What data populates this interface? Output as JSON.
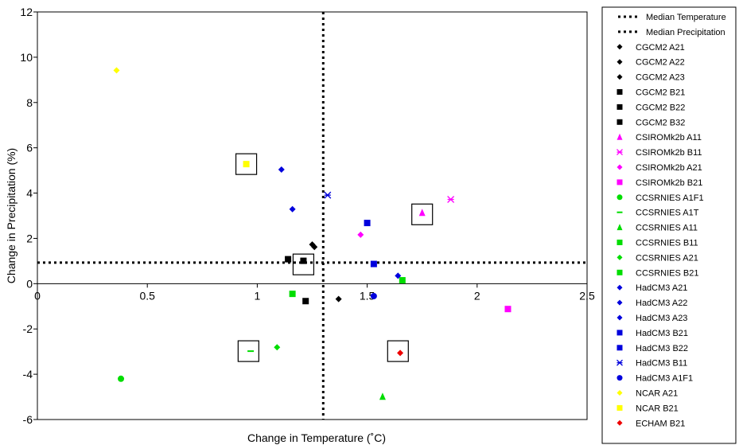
{
  "chart_data": {
    "type": "scatter",
    "xlabel": "Change in Temperature (˚C)",
    "ylabel": "Change in Precipitation (%)",
    "xlim": [
      0,
      2.5
    ],
    "ylim": [
      -6,
      12
    ],
    "xticks": [
      "0",
      "0.5",
      "1",
      "1.5",
      "2",
      "2.5"
    ],
    "xtick_values": [
      0,
      0.5,
      1,
      1.5,
      2,
      2.5
    ],
    "yticks": [
      "-6",
      "-4",
      "-2",
      "0",
      "2",
      "4",
      "6",
      "8",
      "10",
      "12"
    ],
    "ytick_values": [
      -6,
      -4,
      -2,
      0,
      2,
      4,
      6,
      8,
      10,
      12
    ],
    "grid": false,
    "legend_position": "right",
    "median_temperature": 1.3,
    "median_precipitation": 0.93,
    "reference_lines": [
      {
        "name": "Median Temperature",
        "style": "dotted",
        "color": "#000000"
      },
      {
        "name": "Median Precipitation",
        "style": "dotted",
        "color": "#000000"
      }
    ],
    "series": [
      {
        "name": "CGCM2 A21",
        "marker": "diamond",
        "color": "#000000",
        "x": 1.25,
        "y": 1.73
      },
      {
        "name": "CGCM2 A22",
        "marker": "diamond",
        "color": "#000000",
        "x": 1.26,
        "y": 1.62
      },
      {
        "name": "CGCM2 A23",
        "marker": "diamond",
        "color": "#000000",
        "x": 1.37,
        "y": -0.68
      },
      {
        "name": "CGCM2 B21",
        "marker": "square",
        "color": "#000000",
        "x": 1.14,
        "y": 1.08
      },
      {
        "name": "CGCM2 B22",
        "marker": "square",
        "color": "#000000",
        "x": 1.21,
        "y": 1.01
      },
      {
        "name": "CGCM2 B32",
        "marker": "square",
        "color": "#000000",
        "x": 1.22,
        "y": -0.77
      },
      {
        "name": "CSIROMk2b A11",
        "marker": "triangle",
        "color": "#ff00ff",
        "x": 1.75,
        "y": 3.13
      },
      {
        "name": "CSIROMk2b B11",
        "marker": "star",
        "color": "#ff00ff",
        "x": 1.88,
        "y": 3.72
      },
      {
        "name": "CSIROMk2b A21",
        "marker": "diamond",
        "color": "#ff00ff",
        "x": 1.47,
        "y": 2.16
      },
      {
        "name": "CSIROMk2b B21",
        "marker": "square",
        "color": "#ff00ff",
        "x": 2.14,
        "y": -1.12
      },
      {
        "name": "CCSRNIES A1F1",
        "marker": "circle",
        "color": "#00dd00",
        "x": 0.38,
        "y": -4.2
      },
      {
        "name": "CCSRNIES  A1T",
        "marker": "dash",
        "color": "#00dd00",
        "x": 0.97,
        "y": -2.98
      },
      {
        "name": "CCSRNIES A11",
        "marker": "triangle",
        "color": "#00dd00",
        "x": 1.57,
        "y": -4.99
      },
      {
        "name": "CCSRNIES B11",
        "marker": "square",
        "color": "#00dd00",
        "x": 1.16,
        "y": -0.45
      },
      {
        "name": "CCSRNIES A21",
        "marker": "diamond",
        "color": "#00dd00",
        "x": 1.09,
        "y": -2.81
      },
      {
        "name": "CCSRNIES B21",
        "marker": "square",
        "color": "#00dd00",
        "x": 1.66,
        "y": 0.15
      },
      {
        "name": "HadCM3 A21",
        "marker": "diamond",
        "color": "#0000dd",
        "x": 1.11,
        "y": 5.04
      },
      {
        "name": "HadCM3 A22",
        "marker": "diamond",
        "color": "#0000dd",
        "x": 1.16,
        "y": 3.29
      },
      {
        "name": "HadCM3 A23",
        "marker": "diamond",
        "color": "#0000dd",
        "x": 1.64,
        "y": 0.35
      },
      {
        "name": "HadCM3 B21",
        "marker": "square",
        "color": "#0000dd",
        "x": 1.5,
        "y": 2.68
      },
      {
        "name": "HadCM3 B22",
        "marker": "square",
        "color": "#0000dd",
        "x": 1.53,
        "y": 0.87
      },
      {
        "name": "HadCM3 B11",
        "marker": "star",
        "color": "#0000dd",
        "x": 1.32,
        "y": 3.91
      },
      {
        "name": "HadCM3 A1F1",
        "marker": "circle",
        "color": "#0000dd",
        "x": 1.53,
        "y": -0.55
      },
      {
        "name": "NCAR A21",
        "marker": "diamond",
        "color": "#ffff00",
        "x": 0.36,
        "y": 9.42
      },
      {
        "name": "NCAR B21",
        "marker": "square",
        "color": "#ffff00",
        "x": 0.95,
        "y": 5.28
      },
      {
        "name": "ECHAM B21",
        "marker": "diamond",
        "color": "#ee0000",
        "x": 1.65,
        "y": -3.06
      }
    ],
    "highlight_boxes": [
      {
        "x": 0.95,
        "y": 5.28
      },
      {
        "x": 1.21,
        "y": 0.85
      },
      {
        "x": 1.75,
        "y": 3.06
      },
      {
        "x": 0.96,
        "y": -2.98
      },
      {
        "x": 1.64,
        "y": -2.98
      }
    ]
  }
}
